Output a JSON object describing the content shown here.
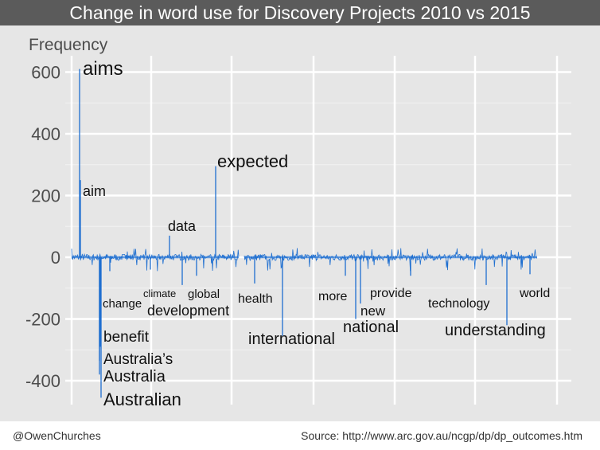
{
  "footer": {
    "credit": "@OwenChurches",
    "source": "Source: http://www.arc.gov.au/ncgp/dp/dp_outcomes.htm"
  },
  "colors": {
    "line": "#1f6fd0",
    "panel": "#e6e6e6",
    "grid": "#ffffff",
    "title_bg": "#5b5b5b"
  },
  "chart_data": {
    "type": "line",
    "title": "Change in word use for Discovery Projects 2010 vs 2015",
    "ylabel": "Frequency",
    "xlabel": "",
    "ylim": [
      -470,
      640
    ],
    "yticks": [
      -400,
      -200,
      0,
      200,
      400,
      600
    ],
    "grid": true,
    "legend": "none",
    "annotations": [
      {
        "word": "aims",
        "value": 610,
        "size": 24
      },
      {
        "word": "aim",
        "value": 250,
        "size": 18
      },
      {
        "word": "data",
        "value": 70,
        "size": 18
      },
      {
        "word": "expected",
        "value": 295,
        "size": 22
      },
      {
        "word": "change",
        "value": -45,
        "size": 15
      },
      {
        "word": "climate",
        "value": -40,
        "size": 13
      },
      {
        "word": "global",
        "value": -60,
        "size": 15
      },
      {
        "word": "development",
        "value": -90,
        "size": 18
      },
      {
        "word": "health",
        "value": -85,
        "size": 16
      },
      {
        "word": "benefit",
        "value": -290,
        "size": 19
      },
      {
        "word": "Australia’s",
        "value": -335,
        "size": 19
      },
      {
        "word": "Australia",
        "value": -380,
        "size": 20
      },
      {
        "word": "Australian",
        "value": -455,
        "size": 22
      },
      {
        "word": "international",
        "value": -255,
        "size": 20
      },
      {
        "word": "more",
        "value": -60,
        "size": 16
      },
      {
        "word": "new",
        "value": -150,
        "size": 17
      },
      {
        "word": "national",
        "value": -200,
        "size": 20
      },
      {
        "word": "provide",
        "value": -60,
        "size": 16
      },
      {
        "word": "technology",
        "value": -90,
        "size": 16
      },
      {
        "word": "world",
        "value": -55,
        "size": 16
      },
      {
        "word": "understanding",
        "value": -220,
        "size": 20
      }
    ]
  }
}
